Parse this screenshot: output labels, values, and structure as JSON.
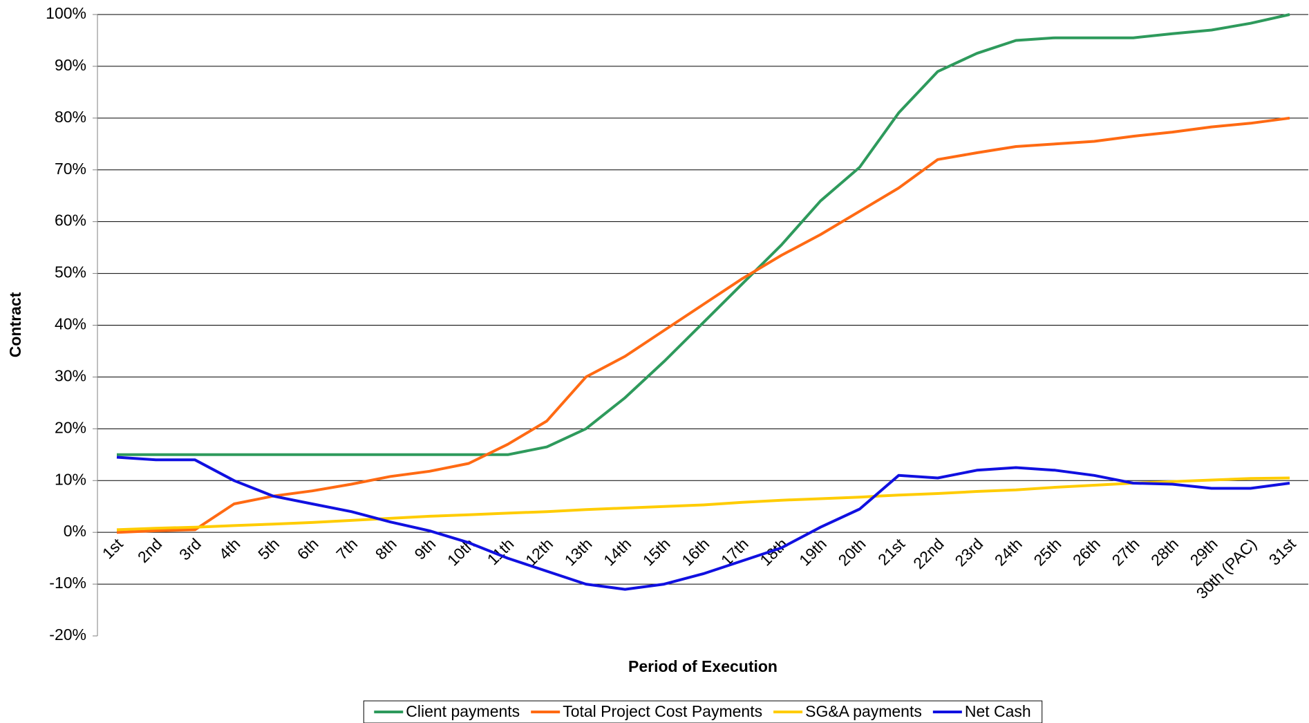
{
  "chart_data": {
    "type": "line",
    "x_label": "Period of Execution",
    "y_label": "Contract",
    "categories": [
      "1st",
      "2nd",
      "3rd",
      "4th",
      "5th",
      "6th",
      "7th",
      "8th",
      "9th",
      "10th",
      "11th",
      "12th",
      "13th",
      "14th",
      "15th",
      "16th",
      "17th",
      "18th",
      "19th",
      "20th",
      "21st",
      "22nd",
      "23rd",
      "24th",
      "25th",
      "26th",
      "27th",
      "28th",
      "29th",
      "30th (PAC)",
      "31st"
    ],
    "series": [
      {
        "name": "Client payments",
        "color": "#2e9a5c",
        "values": [
          15,
          15,
          15,
          15,
          15,
          15,
          15,
          15,
          15,
          15,
          15,
          16.5,
          20,
          26,
          33,
          40.5,
          48,
          55.5,
          64,
          70.5,
          81,
          89,
          92.5,
          95,
          95.5,
          95.5,
          95.5,
          96.3,
          97,
          98.3,
          100
        ]
      },
      {
        "name": "Total Project Cost Payments",
        "color": "#ff6a13",
        "values": [
          0,
          0.3,
          0.5,
          5.5,
          7,
          8,
          9.3,
          10.8,
          11.8,
          13.3,
          17,
          21.5,
          30,
          34,
          39,
          44,
          49,
          53.5,
          57.5,
          62,
          66.5,
          72,
          73.3,
          74.5,
          75,
          75.5,
          76.5,
          77.3,
          78.3,
          79,
          80
        ]
      },
      {
        "name": "SG&A payments",
        "color": "#ffcc00",
        "values": [
          0.5,
          0.8,
          1,
          1.3,
          1.6,
          1.9,
          2.3,
          2.7,
          3.1,
          3.4,
          3.7,
          4,
          4.4,
          4.7,
          5,
          5.3,
          5.8,
          6.2,
          6.5,
          6.8,
          7.2,
          7.5,
          7.9,
          8.2,
          8.7,
          9.1,
          9.5,
          9.8,
          10.1,
          10.4,
          10.5
        ]
      },
      {
        "name": "Net Cash",
        "color": "#1010e0",
        "values": [
          14.5,
          14,
          14,
          10,
          7,
          5.5,
          4,
          2,
          0.3,
          -2,
          -5,
          -7.5,
          -10,
          -11,
          -10,
          -8,
          -5.5,
          -3,
          1,
          4.5,
          11,
          10.5,
          12,
          12.5,
          12,
          11,
          9.5,
          9.3,
          8.5,
          8.5,
          9.5
        ]
      }
    ],
    "ylim": [
      -20,
      100
    ],
    "yticks": [
      {
        "value": -20,
        "label": "-20%"
      },
      {
        "value": -10,
        "label": "-10%"
      },
      {
        "value": 0,
        "label": "0%"
      },
      {
        "value": 10,
        "label": "10%"
      },
      {
        "value": 20,
        "label": "20%"
      },
      {
        "value": 30,
        "label": "30%"
      },
      {
        "value": 40,
        "label": "40%"
      },
      {
        "value": 50,
        "label": "50%"
      },
      {
        "value": 60,
        "label": "60%"
      },
      {
        "value": 70,
        "label": "70%"
      },
      {
        "value": 80,
        "label": "80%"
      },
      {
        "value": 90,
        "label": "90%"
      },
      {
        "value": 100,
        "label": "100%"
      }
    ],
    "grid": true,
    "legend": "bottom"
  }
}
